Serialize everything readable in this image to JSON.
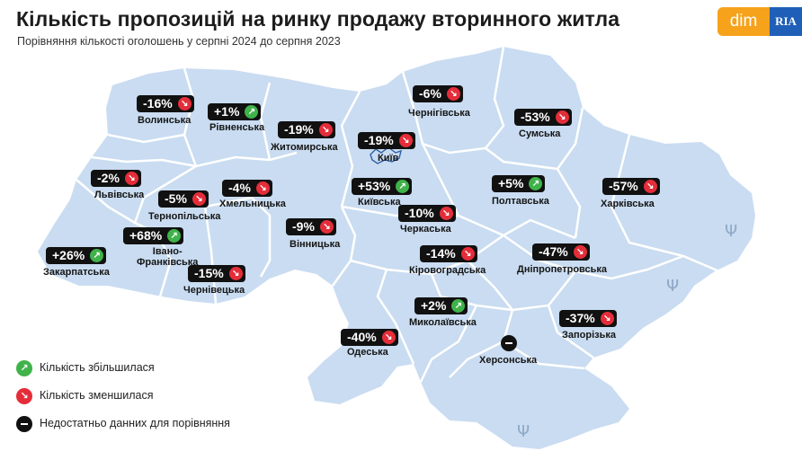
{
  "title": "Кількість пропозицій на ринку продажу вторинного житла",
  "subtitle": "Порівняння кількості оголошень у серпні 2024 до серпня 2023",
  "logo": {
    "dim": "dim",
    "ria": "RIA"
  },
  "colors": {
    "map_fill": "#c9dcf1",
    "border": "#ffffff",
    "increase": "#3fb34a",
    "decrease": "#e52d3a",
    "badge": "#111111"
  },
  "capital": {
    "name": "Київ",
    "icon": "kyiv-outline-icon"
  },
  "regions": [
    {
      "id": "volynska",
      "name": "Волинська",
      "change_label": "-16%",
      "change": -16,
      "trend": "down"
    },
    {
      "id": "rivnenska",
      "name": "Рівненська",
      "change_label": "+1%",
      "change": 1,
      "trend": "up"
    },
    {
      "id": "zhytomyrska",
      "name": "Житомирська",
      "change_label": "-19%",
      "change": -19,
      "trend": "down"
    },
    {
      "id": "chernihivska",
      "name": "Чернігівська",
      "change_label": "-6%",
      "change": -6,
      "trend": "down"
    },
    {
      "id": "sumska",
      "name": "Сумська",
      "change_label": "-53%",
      "change": -53,
      "trend": "down"
    },
    {
      "id": "kyiv_city",
      "name": "Київ",
      "change_label": "-19%",
      "change": -19,
      "trend": "down"
    },
    {
      "id": "kyivska",
      "name": "Київська",
      "change_label": "+53%",
      "change": 53,
      "trend": "up"
    },
    {
      "id": "lvivska",
      "name": "Львівська",
      "change_label": "-2%",
      "change": -2,
      "trend": "down"
    },
    {
      "id": "ternopilska",
      "name": "Тернопільська",
      "change_label": "-5%",
      "change": -5,
      "trend": "down"
    },
    {
      "id": "khmelnytska",
      "name": "Хмельницька",
      "change_label": "-4%",
      "change": -4,
      "trend": "down"
    },
    {
      "id": "vinnytska",
      "name": "Вінницька",
      "change_label": "-9%",
      "change": -9,
      "trend": "down"
    },
    {
      "id": "cherkaska",
      "name": "Черкаська",
      "change_label": "-10%",
      "change": -10,
      "trend": "down"
    },
    {
      "id": "poltavska",
      "name": "Полтавська",
      "change_label": "+5%",
      "change": 5,
      "trend": "up"
    },
    {
      "id": "kharkivska",
      "name": "Харківська",
      "change_label": "-57%",
      "change": -57,
      "trend": "down"
    },
    {
      "id": "zakarpatska",
      "name": "Закарпатська",
      "change_label": "+26%",
      "change": 26,
      "trend": "up"
    },
    {
      "id": "ivano_frankivska",
      "name": "Івано-\nФранківська",
      "change_label": "+68%",
      "change": 68,
      "trend": "up"
    },
    {
      "id": "chernivetska",
      "name": "Чернівецька",
      "change_label": "-15%",
      "change": -15,
      "trend": "down"
    },
    {
      "id": "kirovohradska",
      "name": "Кіровоградська",
      "change_label": "-14%",
      "change": -14,
      "trend": "down"
    },
    {
      "id": "dnipropetrovska",
      "name": "Дніпропетровська",
      "change_label": "-47%",
      "change": -47,
      "trend": "down"
    },
    {
      "id": "mykolaivska",
      "name": "Миколаївська",
      "change_label": "+2%",
      "change": 2,
      "trend": "up"
    },
    {
      "id": "odeska",
      "name": "Одеська",
      "change_label": "-40%",
      "change": -40,
      "trend": "down"
    },
    {
      "id": "zaporizka",
      "name": "Запорізька",
      "change_label": "-37%",
      "change": -37,
      "trend": "down"
    },
    {
      "id": "khersonska",
      "name": "Херсонська",
      "change_label": "",
      "change": null,
      "trend": "nodata"
    }
  ],
  "legend": {
    "increase": {
      "label": "Кількість збільшилася",
      "icon": "arrow-up-right-icon"
    },
    "decrease": {
      "label": "Кількість зменшилася",
      "icon": "arrow-down-right-icon"
    },
    "nodata": {
      "label": "Недостатньо данних для порівняння",
      "icon": "minus-circle-icon"
    }
  }
}
